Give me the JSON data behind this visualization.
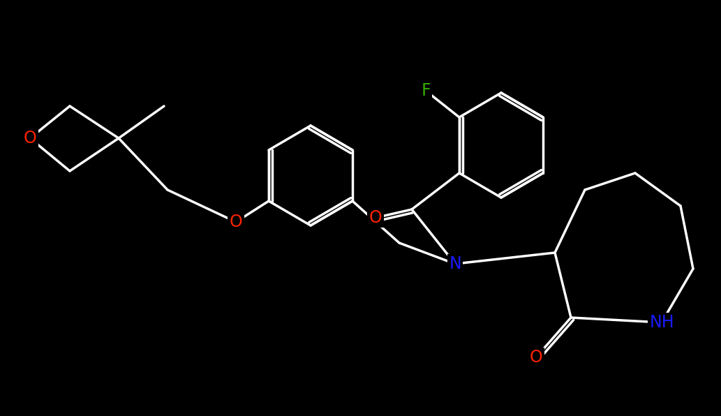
{
  "bg_color": "#000000",
  "bond_color": "#ffffff",
  "atom_colors": {
    "O": "#ff2200",
    "N": "#1a1aff",
    "F": "#33aa00",
    "C": "#ffffff"
  },
  "figsize": [
    10.33,
    5.96
  ],
  "dpi": 100,
  "xlim": [
    0,
    1033
  ],
  "ylim": [
    0,
    596
  ]
}
